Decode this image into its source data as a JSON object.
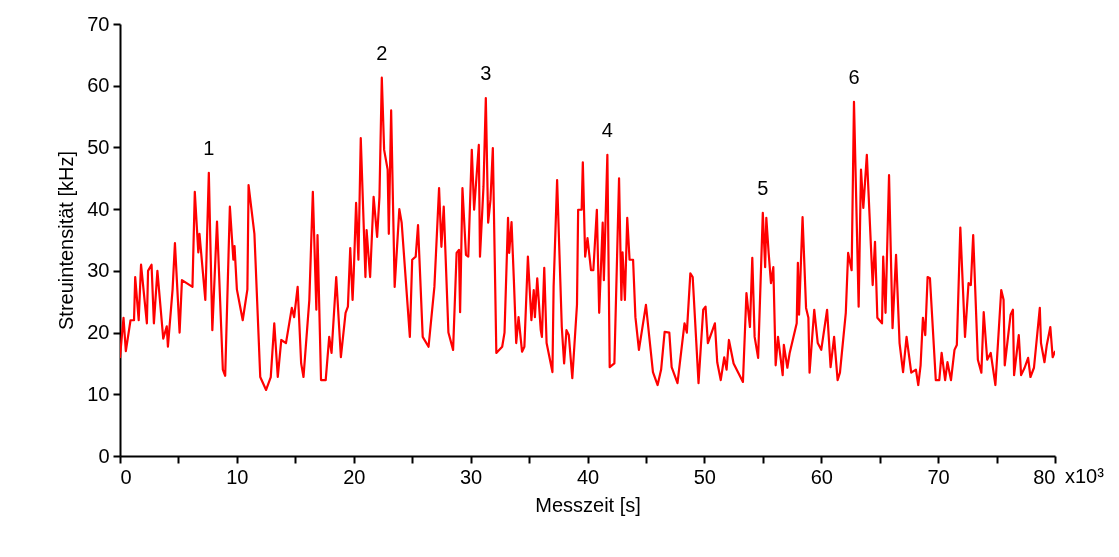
{
  "chart_data": {
    "type": "line",
    "xlabel": "Messzeit [s]",
    "ylabel": "Streuintensität [kHz]",
    "xlim": [
      0,
      80
    ],
    "ylim": [
      0,
      70
    ],
    "xticks": [
      0,
      {
        "value": 5,
        "label": null
      },
      10,
      {
        "value": 15,
        "label": null
      },
      20,
      {
        "value": 25,
        "label": null
      },
      30,
      {
        "value": 35,
        "label": null
      },
      40,
      {
        "value": 45,
        "label": null
      },
      50,
      {
        "value": 55,
        "label": null
      },
      60,
      {
        "value": 65,
        "label": null
      },
      70,
      {
        "value": 75,
        "label": null
      },
      80
    ],
    "yticks": [
      0,
      10,
      20,
      30,
      40,
      50,
      60,
      70
    ],
    "grid": false,
    "marker": "none",
    "line_style": "solid",
    "annotations": [
      "x10³",
      {
        "text": "1",
        "x": 7.6,
        "y": 45.9
      },
      {
        "text": "2",
        "x": 22.4,
        "y": 61.3
      },
      {
        "text": "3",
        "x": 31.3,
        "y": 58
      },
      {
        "text": "4",
        "x": 41.7,
        "y": 48.8
      },
      {
        "text": "5",
        "x": 55.0,
        "y": 39.4
      },
      {
        "text": "6",
        "x": 62.8,
        "y": 57.4
      }
    ],
    "series": [
      {
        "color": "#ff0000",
        "x": [
          0,
          0.3,
          0.5,
          0.9,
          1.2,
          1.3,
          1.6,
          1.8,
          2.3,
          2.4,
          2.7,
          2.9,
          3.2,
          3.7,
          4.0,
          4.1,
          4.5,
          4.7,
          5.1,
          5.3,
          6.2,
          6.4,
          6.7,
          6.8,
          7.3,
          7.6,
          7.9,
          8.3,
          8.8,
          9.0,
          9.4,
          9.7,
          9.8,
          10.0,
          10.5,
          10.9,
          11.0,
          11.5,
          12.0,
          12.5,
          12.9,
          13.2,
          13.5,
          13.8,
          14.2,
          14.7,
          14.9,
          15.2,
          15.5,
          15.7,
          16.2,
          16.5,
          16.8,
          16.9,
          17.2,
          17.6,
          17.9,
          18.1,
          18.5,
          18.9,
          19.3,
          19.5,
          19.7,
          19.9,
          20.0,
          20.2,
          20.4,
          20.6,
          21.0,
          21.1,
          21.4,
          21.7,
          22.0,
          22.2,
          22.4,
          22.6,
          22.9,
          23.0,
          23.2,
          23.5,
          23.9,
          24.1,
          24.8,
          25.0,
          25.3,
          25.5,
          25.9,
          26.4,
          26.9,
          27.3,
          27.5,
          27.7,
          28.1,
          28.5,
          28.8,
          29.0,
          29.1,
          29.3,
          29.6,
          29.8,
          30.1,
          30.3,
          30.7,
          30.8,
          31.1,
          31.3,
          31.5,
          31.7,
          31.9,
          32.2,
          32.7,
          32.9,
          33.2,
          33.3,
          33.5,
          33.7,
          33.9,
          34.1,
          34.4,
          34.6,
          34.9,
          35.2,
          35.4,
          35.5,
          35.7,
          36.0,
          36.1,
          36.3,
          36.5,
          37.0,
          37.1,
          37.4,
          37.8,
          38.0,
          38.2,
          38.4,
          38.7,
          39.1,
          39.2,
          39.5,
          39.6,
          39.8,
          40.0,
          40.3,
          40.5,
          40.8,
          41.0,
          41.3,
          41.4,
          41.7,
          41.9,
          42.3,
          42.7,
          42.9,
          43.0,
          43.2,
          43.4,
          43.6,
          43.9,
          44.1,
          44.4,
          45.0,
          45.6,
          46.0,
          46.3,
          46.6,
          47.0,
          47.2,
          47.7,
          48.3,
          48.5,
          48.8,
          49.0,
          49.5,
          49.9,
          50.1,
          50.3,
          50.9,
          51.1,
          51.4,
          51.7,
          51.9,
          52.1,
          52.5,
          53.3,
          53.6,
          53.9,
          54.1,
          54.3,
          54.6,
          55.0,
          55.2,
          55.3,
          55.5,
          55.7,
          55.9,
          56.1,
          56.3,
          56.7,
          56.8,
          57.1,
          57.3,
          57.9,
          58.0,
          58.1,
          58.4,
          58.7,
          58.9,
          59.0,
          59.4,
          59.7,
          60.0,
          60.5,
          60.8,
          61.1,
          61.4,
          61.6,
          62.1,
          62.3,
          62.6,
          62.8,
          63.2,
          63.4,
          63.6,
          63.9,
          64.4,
          64.6,
          64.8,
          65.2,
          65.3,
          65.5,
          65.8,
          66.1,
          66.4,
          66.7,
          67.0,
          67.3,
          67.7,
          68.1,
          68.3,
          68.5,
          68.7,
          68.9,
          69.1,
          69.3,
          69.8,
          70.1,
          70.3,
          70.6,
          70.8,
          71.1,
          71.4,
          71.6,
          71.9,
          72.3,
          72.6,
          72.8,
          73.0,
          73.4,
          73.7,
          73.9,
          74.2,
          74.5,
          74.9,
          75.4,
          75.6,
          75.7,
          76.2,
          76.4,
          76.5,
          76.9,
          77.1,
          77.4,
          77.7,
          77.9,
          78.2,
          78.7,
          78.8,
          79.1,
          79.3,
          79.6,
          79.8,
          80.0
        ],
        "values": [
          16,
          22.4,
          17,
          22,
          22,
          29,
          22,
          31,
          21.5,
          30,
          31,
          21.5,
          30,
          19,
          21,
          17.7,
          27,
          34.5,
          20,
          28.5,
          27.4,
          42.8,
          33,
          36,
          25.3,
          45.9,
          20.4,
          38,
          14,
          13,
          40.4,
          31.8,
          34,
          27,
          22,
          27,
          43.9,
          36,
          12.8,
          10.7,
          12.8,
          21.5,
          12.8,
          18.8,
          18.3,
          24,
          22.5,
          27.4,
          15,
          12.8,
          25.3,
          42.8,
          23.7,
          35.8,
          12.3,
          12.3,
          19.3,
          16.7,
          29,
          16,
          23.2,
          24.2,
          33.7,
          25.3,
          29.6,
          41,
          31.8,
          51.5,
          29,
          36.6,
          29,
          42,
          35.5,
          42,
          61.3,
          49.6,
          46.4,
          36,
          56,
          27.4,
          40,
          37.8,
          19.3,
          31.8,
          32.3,
          37.4,
          19.3,
          17.7,
          27.4,
          43.4,
          33.9,
          40.4,
          20,
          17.2,
          32.9,
          33.4,
          23.3,
          43.4,
          32.6,
          32.3,
          49.6,
          39.9,
          50.4,
          32.3,
          43.6,
          58,
          37.8,
          41.5,
          49.9,
          16.7,
          17.7,
          20,
          38.6,
          32.9,
          37.9,
          28.5,
          18.3,
          22.5,
          16.9,
          17.7,
          32.3,
          22,
          26.9,
          22.5,
          28.8,
          20.4,
          19.3,
          30.5,
          18.3,
          13.6,
          27.4,
          44.7,
          20.9,
          15,
          20.4,
          19.6,
          12.6,
          24.5,
          39.9,
          39.9,
          47.6,
          32.3,
          35.3,
          30.1,
          30.1,
          39.9,
          23.2,
          37.8,
          28.5,
          48.8,
          14.4,
          15,
          45,
          25.3,
          33,
          25.3,
          38.6,
          31.8,
          31.8,
          22.5,
          17.2,
          24.5,
          13.6,
          11.5,
          14,
          20.1,
          20,
          14.4,
          11.8,
          21.5,
          20,
          29.6,
          29,
          11.8,
          23.7,
          24.2,
          18.3,
          21.5,
          15.2,
          12.3,
          16,
          14,
          18.8,
          15,
          12,
          26.4,
          20.9,
          32.1,
          19.3,
          15.9,
          39.4,
          30.6,
          38.6,
          32.9,
          28,
          30.6,
          14.7,
          19.3,
          13.1,
          18,
          14.3,
          16.7,
          21.5,
          31.3,
          22.9,
          38.7,
          24,
          22.4,
          13.5,
          23.7,
          18.3,
          17.2,
          23.7,
          14.4,
          19.3,
          12.3,
          13.5,
          23.2,
          32.9,
          30.1,
          57.4,
          24.2,
          46.4,
          40.2,
          48.8,
          27.7,
          34.7,
          22.4,
          21.5,
          32.3,
          23.2,
          45.5,
          20.7,
          32.6,
          18.3,
          13.6,
          19.3,
          13.5,
          14,
          11.5,
          14.7,
          22.4,
          19.6,
          29,
          28.8,
          12.3,
          12.3,
          16.7,
          12.3,
          15.2,
          12.3,
          17.2,
          18,
          37,
          19.3,
          28,
          27.7,
          35.8,
          15.6,
          13.5,
          23.3,
          15.6,
          16.7,
          11.5,
          26.9,
          25.3,
          14.7,
          22.9,
          23.7,
          13.1,
          19.6,
          13.1,
          14.3,
          15.9,
          12.8,
          14.3,
          24,
          18.3,
          15.2,
          18,
          20.9,
          16,
          16.9
        ]
      }
    ]
  }
}
